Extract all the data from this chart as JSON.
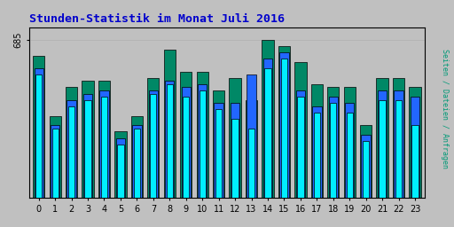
{
  "title": "Stunden-Statistik im Monat Juli 2016",
  "ylabel_right": "Seiten / Dateien / Anfragen",
  "xlabel_labels": [
    "0",
    "1",
    "2",
    "3",
    "4",
    "5",
    "6",
    "7",
    "8",
    "9",
    "10",
    "11",
    "12",
    "13",
    "14",
    "15",
    "16",
    "17",
    "18",
    "19",
    "20",
    "21",
    "22",
    "23"
  ],
  "ytick_label": "685",
  "background_color": "#c0c0c0",
  "plot_bg_color": "#c0c0c0",
  "title_color": "#0000cc",
  "bar_data": {
    "green": [
      90,
      52,
      70,
      74,
      74,
      42,
      52,
      76,
      94,
      80,
      80,
      68,
      76,
      62,
      100,
      96,
      86,
      72,
      70,
      70,
      46,
      76,
      76,
      70
    ],
    "blue": [
      82,
      46,
      62,
      66,
      68,
      38,
      46,
      68,
      74,
      70,
      72,
      60,
      60,
      78,
      88,
      92,
      68,
      58,
      64,
      60,
      40,
      68,
      68,
      64
    ],
    "cyan": [
      78,
      44,
      58,
      62,
      64,
      34,
      44,
      66,
      72,
      64,
      68,
      56,
      50,
      44,
      82,
      88,
      64,
      54,
      60,
      54,
      36,
      62,
      62,
      46
    ]
  },
  "bar_colors": [
    "#008866",
    "#2266ff",
    "#00eeff"
  ],
  "bar_width": 0.72,
  "ylim": [
    0,
    108
  ],
  "figsize": [
    5.12,
    2.56
  ],
  "dpi": 100,
  "border_color": "#000000",
  "grid_color": "#b0b0b0",
  "ytick_pos": 100
}
